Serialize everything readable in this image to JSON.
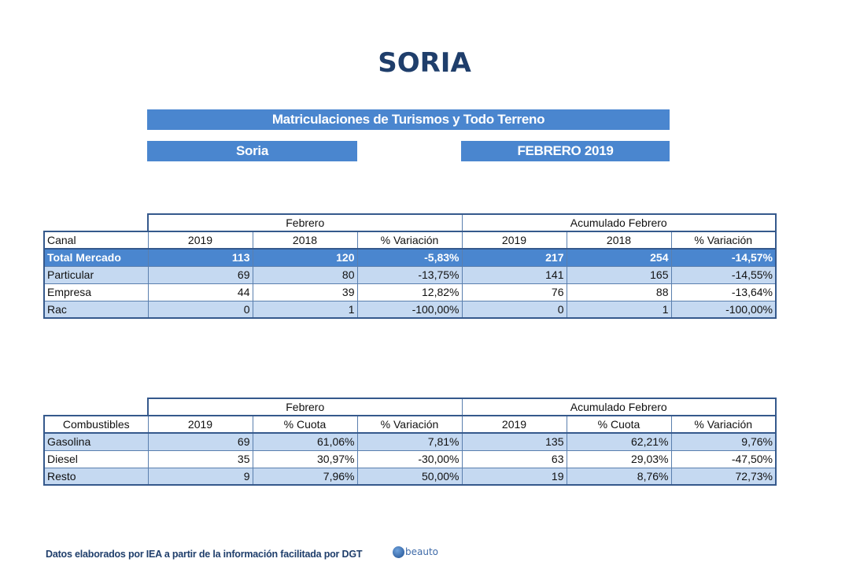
{
  "title": "SORIA",
  "banners": {
    "main": "Matriculaciones de Turismos y Todo Terreno",
    "region": "Soria",
    "period": "FEBRERO 2019"
  },
  "market_table": {
    "group_headers": [
      "Febrero",
      "Acumulado Febrero"
    ],
    "column_headers": [
      "Canal",
      "2019",
      "2018",
      "% Variación",
      "2019",
      "2018",
      "% Variación"
    ],
    "rows": [
      [
        "Total Mercado",
        "113",
        "120",
        "-5,83%",
        "217",
        "254",
        "-14,57%"
      ],
      [
        "Particular",
        "69",
        "80",
        "-13,75%",
        "141",
        "165",
        "-14,55%"
      ],
      [
        "Empresa",
        "44",
        "39",
        "12,82%",
        "76",
        "88",
        "-13,64%"
      ],
      [
        "Rac",
        "0",
        "1",
        "-100,00%",
        "0",
        "1",
        "-100,00%"
      ]
    ]
  },
  "fuel_table": {
    "group_headers": [
      "Febrero",
      "Acumulado Febrero"
    ],
    "column_headers": [
      "Combustibles",
      "2019",
      "% Cuota",
      "% Variación",
      "2019",
      "% Cuota",
      "% Variación"
    ],
    "rows": [
      [
        "Gasolina",
        "69",
        "61,06%",
        "7,81%",
        "135",
        "62,21%",
        "9,76%"
      ],
      [
        "Diesel",
        "35",
        "30,97%",
        "-30,00%",
        "63",
        "29,03%",
        "-47,50%"
      ],
      [
        "Resto",
        "9",
        "7,96%",
        "50,00%",
        "19",
        "8,76%",
        "72,73%"
      ]
    ]
  },
  "footer": {
    "text": "Datos elaborados por IEA a partir de la información facilitada por DGT",
    "logo_text": "beauto"
  },
  "colors": {
    "banner": "#4a86cf",
    "title": "#1f3e6b",
    "band": "#c5d9f1",
    "border": "#35598c"
  }
}
